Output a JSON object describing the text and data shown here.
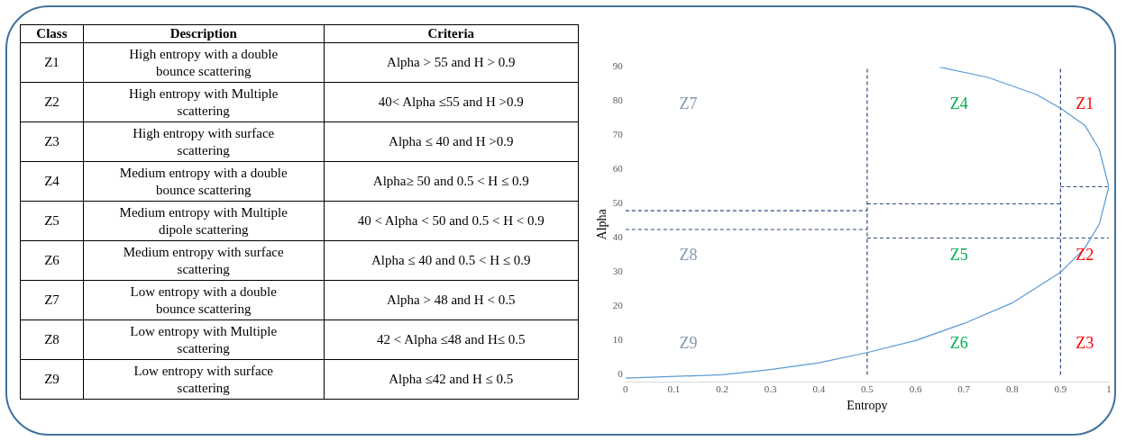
{
  "chart_data": [
    {
      "type": "other",
      "annotations": [
        "Class",
        "Description",
        "Criteria",
        "Z1",
        "High entropy with a double bounce scattering",
        "Alpha > 55 and H > 0.9",
        "Z2",
        "High entropy with Multiple scattering",
        "40< Alpha ≤55 and H >0.9",
        "Z3",
        "High entropy with surface scattering",
        "Alpha ≤ 40 and H >0.9",
        "Z4",
        "Medium entropy with  a double bounce scattering",
        "Alpha≥ 50 and 0.5 < H ≤ 0.9",
        "Z5",
        "Medium entropy with Multiple dipole scattering",
        "40 < Alpha < 50 and 0.5 < H < 0.9",
        "Z6",
        "Medium entropy with surface scattering",
        "Alpha ≤ 40 and 0.5 < H ≤ 0.9",
        "Z7",
        "Low entropy with a double bounce scattering",
        "Alpha > 48 and H < 0.5",
        "Z8",
        "Low entropy with  Multiple scattering",
        "42 < Alpha  ≤48 and H≤  0.5",
        "Z9",
        "Low entropy with surface scattering",
        "Alpha ≤42 and H ≤ 0.5"
      ]
    },
    {
      "type": "line",
      "xlabel": "Entropy",
      "ylabel": "Alpha",
      "xlim": [
        0,
        1
      ],
      "ylim": [
        -2,
        90
      ],
      "xticks": [
        0,
        0.1,
        0.2,
        0.3,
        0.4,
        0.5,
        0.6,
        0.7,
        0.8,
        0.9,
        1
      ],
      "yticks": [
        0,
        10,
        20,
        30,
        40,
        50,
        60,
        70,
        80,
        90
      ],
      "grid": false,
      "legend": false,
      "marker": "none",
      "series": [
        {
          "type": "line",
          "color": "#5b9bd5",
          "line_style": "solid",
          "x": [
            0,
            0.2,
            0.3,
            0.4,
            0.5,
            0.6,
            0.7,
            0.8,
            0.9,
            0.95,
            0.98,
            1,
            0.98,
            0.95,
            0.9,
            0.85,
            0.75,
            0.65
          ],
          "values": [
            -1,
            0,
            1.5,
            3.5,
            6.5,
            10,
            15,
            21,
            30,
            37,
            44,
            55,
            66,
            73,
            78,
            82,
            87,
            90
          ]
        },
        {
          "type": "line",
          "color": "#2f4a7a",
          "line_style": "dashed",
          "x": [
            0.5,
            0.5
          ],
          "values": [
            0,
            90
          ]
        },
        {
          "type": "line",
          "color": "#2f4a7a",
          "line_style": "dashed",
          "x": [
            0.9,
            0.9
          ],
          "values": [
            0,
            90
          ]
        },
        {
          "type": "line",
          "color": "#2f4a7a",
          "line_style": "dashed",
          "x": [
            0,
            0.5
          ],
          "values": [
            48,
            48
          ]
        },
        {
          "type": "line",
          "color": "#2f4a7a",
          "line_style": "dashed",
          "x": [
            0,
            0.5
          ],
          "values": [
            42.5,
            42.5
          ]
        },
        {
          "type": "line",
          "color": "#2f4a7a",
          "line_style": "dashed",
          "x": [
            0.5,
            0.9
          ],
          "values": [
            50,
            50
          ]
        },
        {
          "type": "line",
          "color": "#2f4a7a",
          "line_style": "dashed",
          "x": [
            0.5,
            1
          ],
          "values": [
            40,
            40
          ]
        },
        {
          "type": "line",
          "color": "#2f4a7a",
          "line_style": "dashed",
          "x": [
            0.9,
            1
          ],
          "values": [
            55,
            55
          ]
        }
      ],
      "annotations": [
        "Z1",
        "Z2",
        "Z3",
        "Z4",
        "Z5",
        "Z6",
        "Z7",
        "Z8",
        "Z9"
      ]
    }
  ]
}
